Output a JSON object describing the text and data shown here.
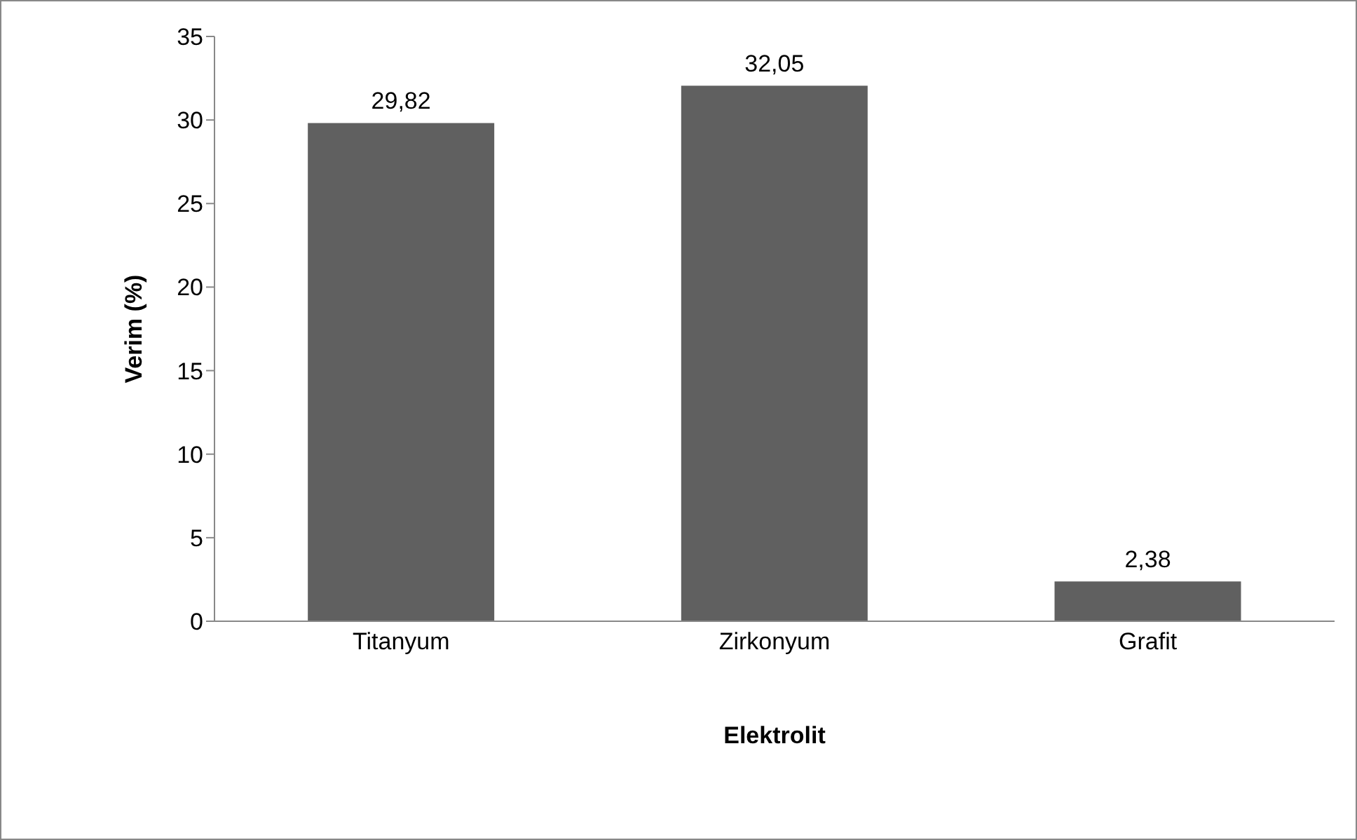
{
  "chart_data": {
    "type": "bar",
    "xlabel": "Elektrolit",
    "ylabel": "Verim (%)",
    "categories": [
      "Titanyum",
      "Zirkonyum",
      "Grafit"
    ],
    "values": [
      29.82,
      32.05,
      2.38
    ],
    "color": "#606060",
    "value_labels": [
      "29,82",
      "32,05",
      "2,38"
    ],
    "ylim": [
      0,
      35
    ],
    "yticks": [
      0,
      5,
      10,
      15,
      20,
      25,
      30,
      35
    ],
    "grid": false,
    "legend": false
  }
}
